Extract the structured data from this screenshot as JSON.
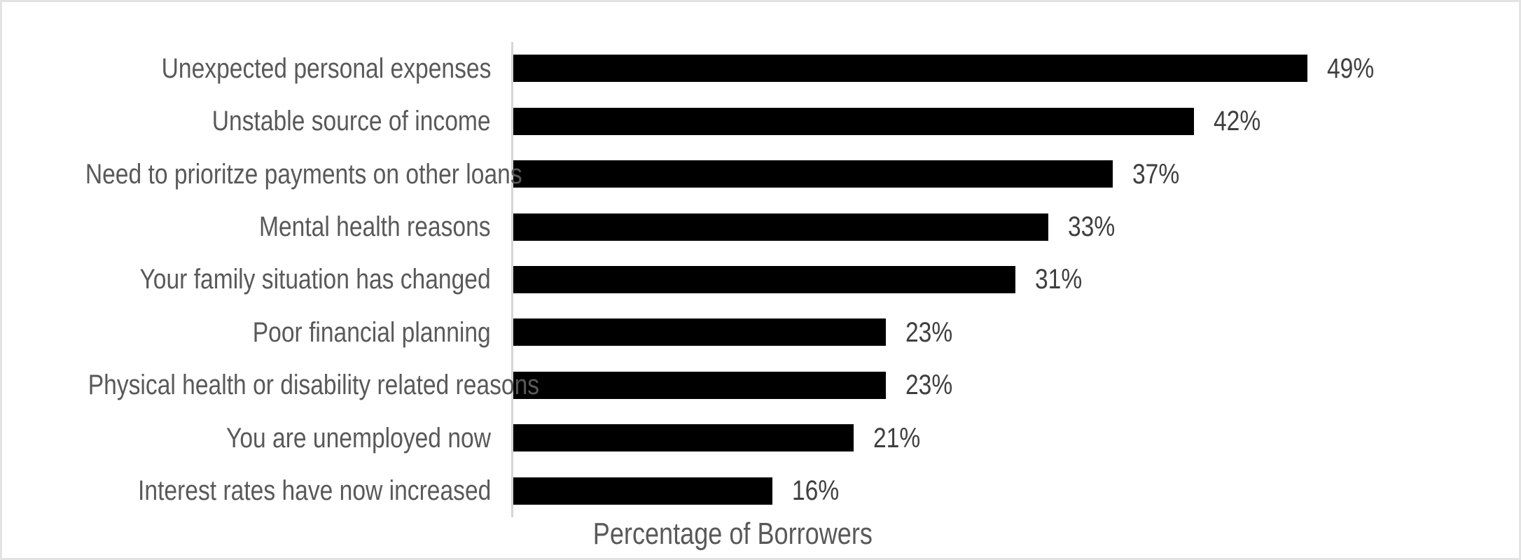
{
  "chart_data": {
    "type": "bar",
    "orientation": "horizontal",
    "title": "",
    "xlabel": "Percentage of Borrowers",
    "ylabel": "",
    "categories": [
      "Unexpected personal expenses",
      "Unstable source of income",
      "Need to prioritze payments on other loans",
      "Mental health reasons",
      "Your family situation has changed",
      "Poor financial planning",
      "Physical health or disability related reasons",
      "You are unemployed now",
      "Interest rates have now increased"
    ],
    "values": [
      49,
      42,
      37,
      33,
      31,
      23,
      23,
      21,
      16
    ],
    "value_labels": [
      "49%",
      "42%",
      "37%",
      "33%",
      "31%",
      "23%",
      "23%",
      "21%",
      "16%"
    ],
    "grid": false,
    "legend": false,
    "data_labels_position": "outside-end"
  },
  "colors": {
    "bar": "#000000",
    "category_label": "#595959",
    "value_label": "#3f3f3f",
    "axis_line": "#d6d6d6",
    "axis_title": "#595959",
    "background": "#ffffff",
    "frame_border": "#e3e3e3"
  }
}
